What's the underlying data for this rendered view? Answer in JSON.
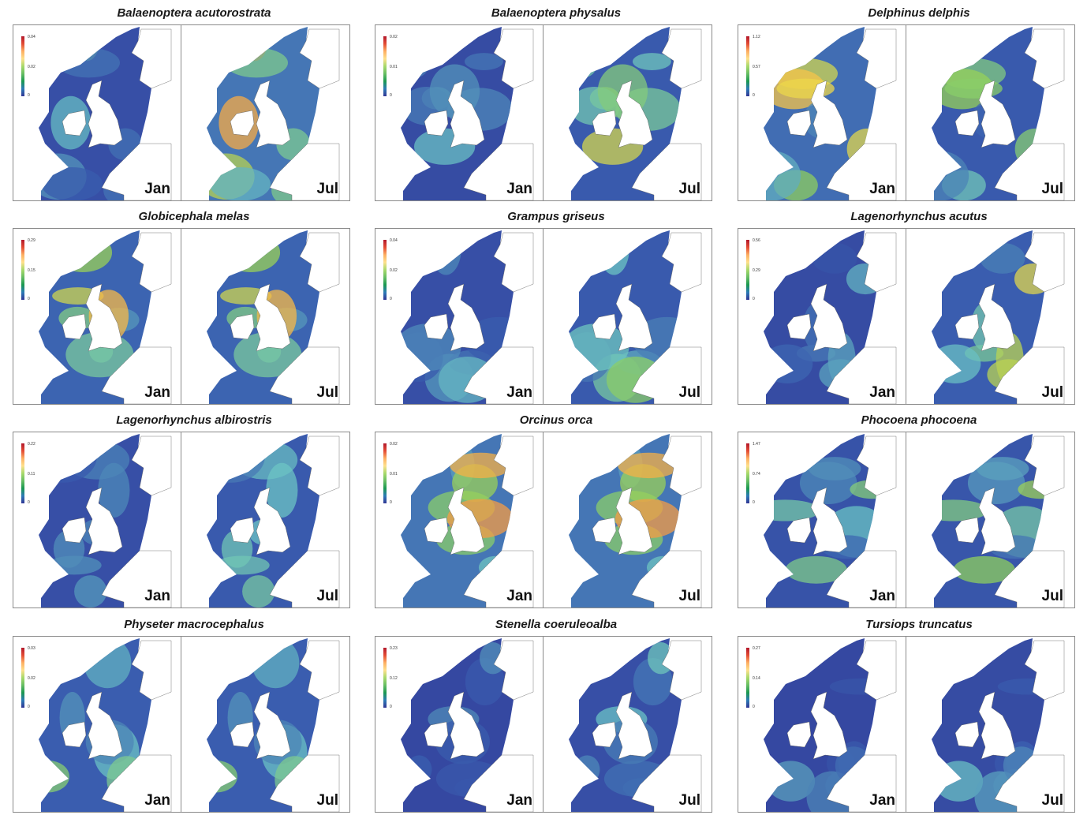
{
  "month_labels": {
    "left": "Jan",
    "right": "Jul"
  },
  "palette": {
    "high": "#b2182b",
    "mid_high": "#f46d43",
    "mid": "#fee08b",
    "mid_low": "#66bd63",
    "low": "#2c4f9e",
    "land": "#ffffff"
  },
  "species": [
    {
      "name": "Balaenoptera acutorostrata",
      "legend": [
        "0.04",
        "0.02",
        "0"
      ],
      "jan_level": 0.35,
      "jul_level": 0.7
    },
    {
      "name": "Balaenoptera physalus",
      "legend": [
        "0.02",
        "0.01",
        "0"
      ],
      "jan_level": 0.3,
      "jul_level": 0.5
    },
    {
      "name": "Delphinus delphis",
      "legend": [
        "1.12",
        "0.57",
        "0"
      ],
      "jan_level": 0.65,
      "jul_level": 0.5
    },
    {
      "name": "Globicephala melas",
      "legend": [
        "0.29",
        "0.15",
        "0"
      ],
      "jan_level": 0.6,
      "jul_level": 0.6
    },
    {
      "name": "Grampus griseus",
      "legend": [
        "0.04",
        "0.02",
        "0"
      ],
      "jan_level": 0.35,
      "jul_level": 0.5
    },
    {
      "name": "Lagenorhynchus acutus",
      "legend": [
        "0.56",
        "0.29",
        "0"
      ],
      "jan_level": 0.3,
      "jul_level": 0.55
    },
    {
      "name": "Lagenorhynchus albirostris",
      "legend": [
        "0.22",
        "0.11",
        "0"
      ],
      "jan_level": 0.35,
      "jul_level": 0.5
    },
    {
      "name": "Orcinus orca",
      "legend": [
        "0.02",
        "0.01",
        "0"
      ],
      "jan_level": 0.7,
      "jul_level": 0.7
    },
    {
      "name": "Phocoena phocoena",
      "legend": [
        "1.47",
        "0.74",
        "0"
      ],
      "jan_level": 0.4,
      "jul_level": 0.45
    },
    {
      "name": "Physeter macrocephalus",
      "legend": [
        "0.03",
        "0.02",
        "0"
      ],
      "jan_level": 0.55,
      "jul_level": 0.55
    },
    {
      "name": "Stenella coeruleoalba",
      "legend": [
        "0.23",
        "0.12",
        "0"
      ],
      "jan_level": 0.25,
      "jul_level": 0.35
    },
    {
      "name": "Tursiops truncatus",
      "legend": [
        "0.27",
        "0.14",
        "0"
      ],
      "jan_level": 0.25,
      "jul_level": 0.3
    }
  ]
}
